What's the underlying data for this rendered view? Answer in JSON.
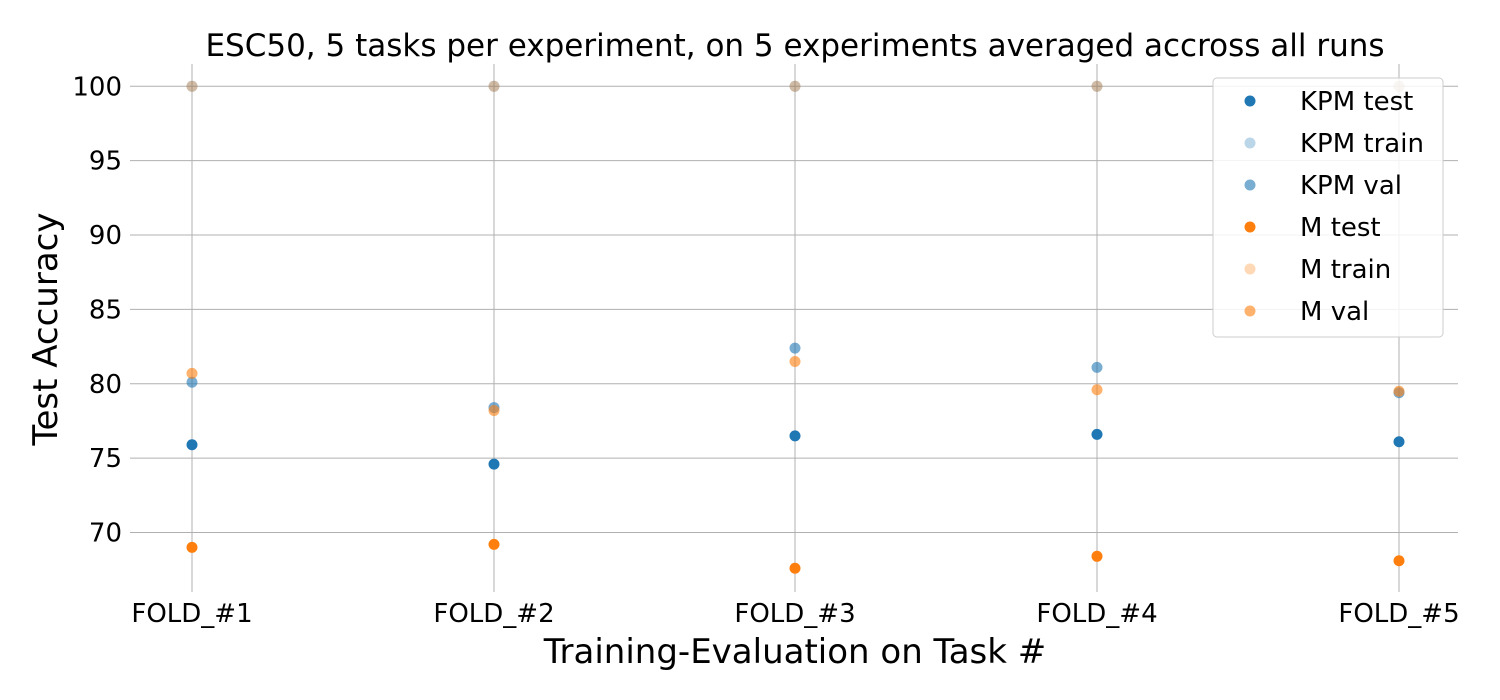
{
  "chart_data": {
    "type": "scatter",
    "title": "ESC50, 5 tasks per experiment, on 5 experiments averaged accross all runs",
    "xlabel": "Training-Evaluation on Task #",
    "ylabel": "Test Accuracy",
    "categories": [
      "FOLD_#1",
      "FOLD_#2",
      "FOLD_#3",
      "FOLD_#4",
      "FOLD_#5"
    ],
    "ylim": [
      66,
      101.5
    ],
    "yticks": [
      70,
      75,
      80,
      85,
      90,
      95,
      100
    ],
    "grid": true,
    "legend_position": "top-right",
    "series": [
      {
        "name": "KPM test",
        "color": "#1f77b4",
        "opacity": 1.0,
        "values": [
          75.9,
          74.6,
          76.5,
          76.6,
          76.1
        ]
      },
      {
        "name": "KPM train",
        "color": "#1f77b4",
        "opacity": 0.3,
        "values": [
          100,
          100,
          100,
          100,
          100
        ]
      },
      {
        "name": "KPM val",
        "color": "#1f77b4",
        "opacity": 0.6,
        "values": [
          80.1,
          78.4,
          82.4,
          81.1,
          79.4
        ]
      },
      {
        "name": "M test",
        "color": "#ff7f0e",
        "opacity": 1.0,
        "values": [
          69.0,
          69.2,
          67.6,
          68.4,
          68.1
        ]
      },
      {
        "name": "M train",
        "color": "#ff7f0e",
        "opacity": 0.3,
        "values": [
          100,
          100,
          100,
          100,
          100
        ]
      },
      {
        "name": "M val",
        "color": "#ff7f0e",
        "opacity": 0.6,
        "values": [
          80.7,
          78.2,
          81.5,
          79.6,
          79.5
        ]
      }
    ]
  }
}
